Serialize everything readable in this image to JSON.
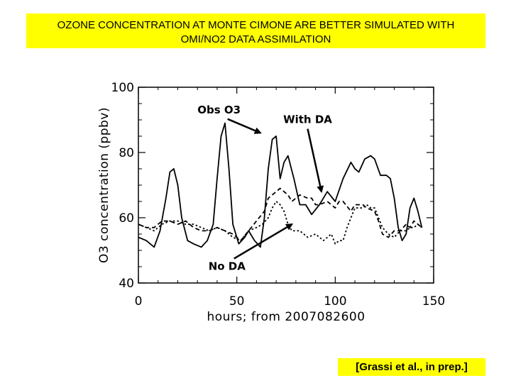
{
  "banner": {
    "line1": "OZONE CONCENTRATION AT MONTE CIMONE ARE BETTER SIMULATED WITH",
    "line2": "OMI/NO2 DATA ASSIMILATION",
    "color": "#ffff00"
  },
  "citation": "[Grassi et al., in prep.]",
  "chart_data": {
    "type": "line",
    "title": "",
    "xlabel": "hours; from 2007082600",
    "ylabel": "O3 concentration (ppbv)",
    "xlim": [
      0,
      150
    ],
    "ylim": [
      40,
      100
    ],
    "xticks": [
      0,
      50,
      100,
      150
    ],
    "yticks": [
      40,
      60,
      80,
      100
    ],
    "xtick_labels": [
      "0",
      "50",
      "100",
      "150"
    ],
    "ytick_labels": [
      "40",
      "60",
      "80",
      "100"
    ],
    "grid": false,
    "series": [
      {
        "name": "Obs O3",
        "style": "solid",
        "x": [
          0,
          4,
          8,
          11,
          14,
          16,
          18,
          20,
          22,
          25,
          28,
          32,
          35,
          38,
          40,
          42,
          44,
          46,
          48,
          51,
          54,
          56,
          59,
          62,
          64,
          66,
          68,
          70,
          72,
          74,
          76,
          79,
          82,
          85,
          88,
          92,
          96,
          100,
          104,
          108,
          110,
          112,
          115,
          118,
          120,
          123,
          126,
          128,
          130,
          132,
          134,
          136,
          138,
          140,
          142,
          144
        ],
        "y": [
          54,
          53,
          51,
          56,
          66,
          74,
          75,
          70,
          60,
          53,
          52,
          51,
          53,
          58,
          72,
          85,
          89,
          75,
          58,
          52,
          54,
          56,
          53,
          51,
          60,
          75,
          84,
          85,
          72,
          77,
          79,
          72,
          64,
          64,
          61,
          64,
          68,
          65,
          72,
          77,
          75,
          74,
          78,
          79,
          78,
          73,
          73,
          72,
          66,
          57,
          53,
          55,
          63,
          66,
          62,
          57
        ]
      },
      {
        "name": "With DA",
        "style": "dashed",
        "x": [
          0,
          4,
          8,
          12,
          16,
          20,
          24,
          28,
          32,
          36,
          40,
          44,
          48,
          52,
          56,
          60,
          64,
          66,
          68,
          70,
          72,
          74,
          76,
          78,
          82,
          86,
          88,
          90,
          92,
          96,
          98,
          100,
          102,
          104,
          108,
          110,
          112,
          114,
          116,
          120,
          122,
          124,
          127,
          130,
          133,
          136,
          138,
          140,
          142,
          144
        ],
        "y": [
          58,
          57,
          57,
          59,
          59,
          58,
          59,
          57,
          56,
          56,
          57,
          56,
          55,
          53,
          56,
          59,
          62,
          66,
          67,
          68,
          69,
          68,
          67,
          65,
          67,
          66,
          66,
          64,
          64,
          65,
          64,
          63,
          65,
          65,
          62,
          64,
          64,
          64,
          63,
          62,
          59,
          55,
          54,
          56,
          56,
          58,
          57,
          59,
          58,
          57
        ]
      },
      {
        "name": "No DA",
        "style": "dotted",
        "x": [
          0,
          4,
          8,
          12,
          16,
          20,
          24,
          28,
          32,
          36,
          40,
          44,
          48,
          52,
          56,
          60,
          63,
          66,
          68,
          70,
          72,
          74,
          76,
          78,
          82,
          86,
          90,
          94,
          98,
          100,
          102,
          104,
          106,
          108,
          110,
          114,
          116,
          118,
          120,
          122,
          124,
          127,
          130,
          133,
          136,
          138,
          140,
          142,
          144
        ],
        "y": [
          58,
          57,
          56,
          58,
          59,
          59,
          58,
          58,
          57,
          56,
          57,
          56,
          54,
          53,
          56,
          57,
          58,
          60,
          63,
          65,
          64,
          62,
          58,
          56,
          56,
          54,
          55,
          53,
          55,
          52,
          53,
          53,
          57,
          60,
          63,
          63,
          64,
          63,
          63,
          60,
          57,
          55,
          54,
          56,
          56,
          57,
          57,
          58,
          57
        ]
      }
    ],
    "annotations": [
      {
        "text": "Obs O3",
        "x": 41,
        "y": 92,
        "arrow_to": [
          62,
          86
        ]
      },
      {
        "text": "With DA",
        "x": 86,
        "y": 89,
        "arrow_to": [
          93,
          68
        ]
      },
      {
        "text": "No DA",
        "x": 45,
        "y": 44,
        "arrow_to": [
          78,
          58
        ]
      }
    ]
  }
}
